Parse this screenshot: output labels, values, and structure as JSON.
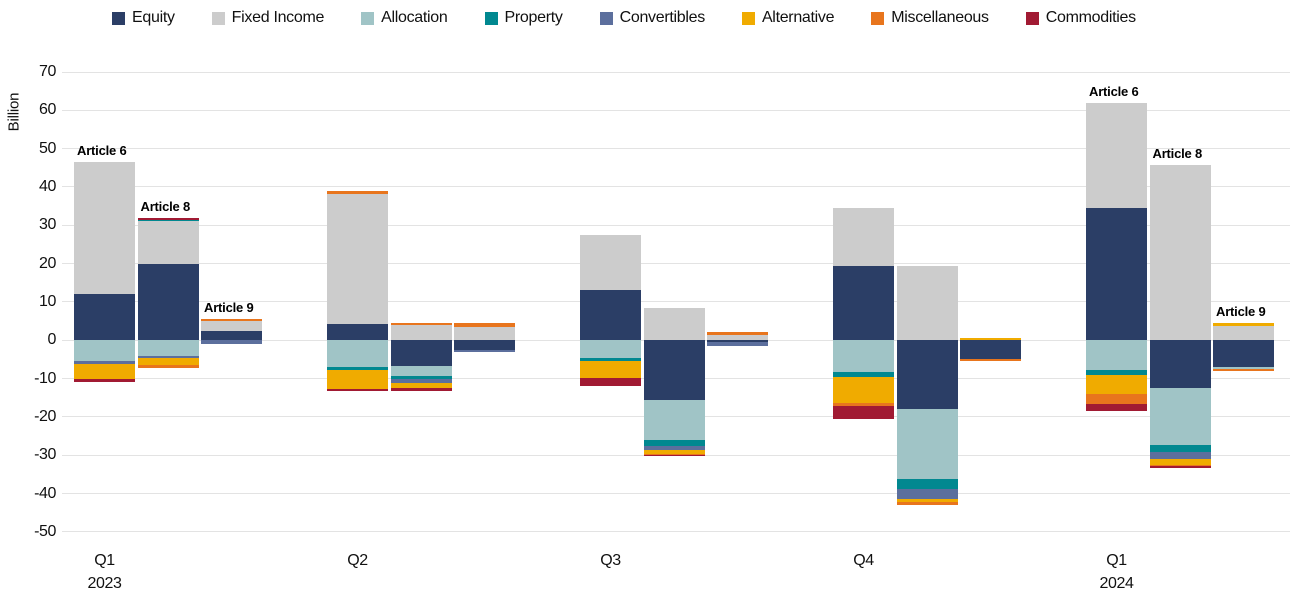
{
  "chart_data": {
    "type": "bar",
    "stacked": true,
    "title": "",
    "ylabel": "Billion",
    "unit": "Billion",
    "ylim": [
      -50,
      70
    ],
    "yticks": [
      70,
      60,
      50,
      40,
      30,
      20,
      10,
      0,
      -10,
      -20,
      -30,
      -40,
      -50
    ],
    "grid": true,
    "legend_position": "top",
    "series": [
      {
        "name": "Equity",
        "color": "#2b3e66"
      },
      {
        "name": "Fixed Income",
        "color": "#cccccc"
      },
      {
        "name": "Allocation",
        "color": "#a0c4c6"
      },
      {
        "name": "Property",
        "color": "#018890"
      },
      {
        "name": "Convertibles",
        "color": "#5c6f9d"
      },
      {
        "name": "Alternative",
        "color": "#f0ab00"
      },
      {
        "name": "Miscellaneous",
        "color": "#e8751d"
      },
      {
        "name": "Commodities",
        "color": "#a11a33"
      }
    ],
    "groups": [
      {
        "label_lines": [
          "Q1",
          "2023"
        ],
        "bars": [
          {
            "name": "Article 6",
            "show_label": true,
            "segments": {
              "Equity": 12,
              "Fixed Income": 34.5,
              "Allocation": -5.5,
              "Convertibles": -0.7,
              "Alternative": -3.8,
              "Commodities": -1.0
            }
          },
          {
            "name": "Article 8",
            "show_label": true,
            "segments": {
              "Equity": 20,
              "Fixed Income": 11,
              "Property": 0.5,
              "Commodities": 0.5,
              "Allocation": -4.0,
              "Convertibles": -0.7,
              "Alternative": -1.7,
              "Miscellaneous": -0.7
            }
          },
          {
            "name": "Article 9",
            "show_label": true,
            "segments": {
              "Equity": 2.4,
              "Fixed Income": 2.6,
              "Miscellaneous": 0.5,
              "Convertibles": -1.0
            }
          }
        ]
      },
      {
        "label_lines": [
          "Q2"
        ],
        "bars": [
          {
            "name": "Article 6",
            "show_label": false,
            "segments": {
              "Equity": 4.3,
              "Fixed Income": 34,
              "Miscellaneous": 0.7,
              "Allocation": -7.0,
              "Property": -0.7,
              "Alternative": -5.0,
              "Commodities": -0.6
            }
          },
          {
            "name": "Article 8",
            "show_label": false,
            "segments": {
              "Fixed Income": 4.0,
              "Miscellaneous": 0.4,
              "Equity": -6.6,
              "Allocation": -2.7,
              "Property": -0.8,
              "Convertibles": -1.1,
              "Alternative": -1.2,
              "Commodities": -0.7
            }
          },
          {
            "name": "Article 9",
            "show_label": false,
            "segments": {
              "Fixed Income": 3.6,
              "Miscellaneous": 0.8,
              "Equity": -2.5,
              "Convertibles": -0.6
            }
          }
        ]
      },
      {
        "label_lines": [
          "Q3"
        ],
        "bars": [
          {
            "name": "Article 6",
            "show_label": false,
            "segments": {
              "Equity": 13,
              "Fixed Income": 14.5,
              "Allocation": -4.6,
              "Property": -0.9,
              "Alternative": -4.3,
              "Commodities": -2.2
            }
          },
          {
            "name": "Article 8",
            "show_label": false,
            "segments": {
              "Fixed Income": 8.5,
              "Equity": -15.5,
              "Allocation": -10.4,
              "Property": -1.7,
              "Convertibles": -1.1,
              "Alternative": -0.9,
              "Miscellaneous": -0.3,
              "Commodities": -0.4
            }
          },
          {
            "name": "Article 9",
            "show_label": false,
            "segments": {
              "Fixed Income": 1.4,
              "Miscellaneous": 0.7,
              "Equity": -0.4,
              "Convertibles": -1.0
            }
          }
        ]
      },
      {
        "label_lines": [
          "Q4"
        ],
        "bars": [
          {
            "name": "Article 6",
            "show_label": false,
            "segments": {
              "Equity": 19.5,
              "Fixed Income": 15,
              "Allocation": -8.3,
              "Property": -1.2,
              "Alternative": -6.8,
              "Miscellaneous": -0.9,
              "Commodities": -3.4
            }
          },
          {
            "name": "Article 8",
            "show_label": false,
            "segments": {
              "Fixed Income": 19.5,
              "Equity": -17.8,
              "Allocation": -18.3,
              "Property": -2.6,
              "Convertibles": -2.6,
              "Alternative": -1.0,
              "Miscellaneous": -0.7
            }
          },
          {
            "name": "Article 9",
            "show_label": false,
            "segments": {
              "Alternative": 0.5,
              "Equity": -4.8,
              "Miscellaneous": -0.5
            }
          }
        ]
      },
      {
        "label_lines": [
          "Q1",
          "2024"
        ],
        "bars": [
          {
            "name": "Article 6",
            "show_label": true,
            "segments": {
              "Equity": 34.5,
              "Fixed Income": 27.5,
              "Allocation": -7.8,
              "Property": -1.3,
              "Alternative": -5.0,
              "Miscellaneous": -2.4,
              "Commodities": -2.0
            }
          },
          {
            "name": "Article 8",
            "show_label": true,
            "segments": {
              "Fixed Income": 45.7,
              "Equity": -12.4,
              "Allocation": -14.8,
              "Property": -2.0,
              "Convertibles": -1.7,
              "Alternative": -1.5,
              "Miscellaneous": -0.4,
              "Commodities": -0.4
            }
          },
          {
            "name": "Article 9",
            "show_label": true,
            "segments": {
              "Fixed Income": 3.7,
              "Alternative": 0.7,
              "Equity": -7.0,
              "Allocation": -0.5,
              "Miscellaneous": -0.6
            }
          }
        ]
      }
    ]
  }
}
